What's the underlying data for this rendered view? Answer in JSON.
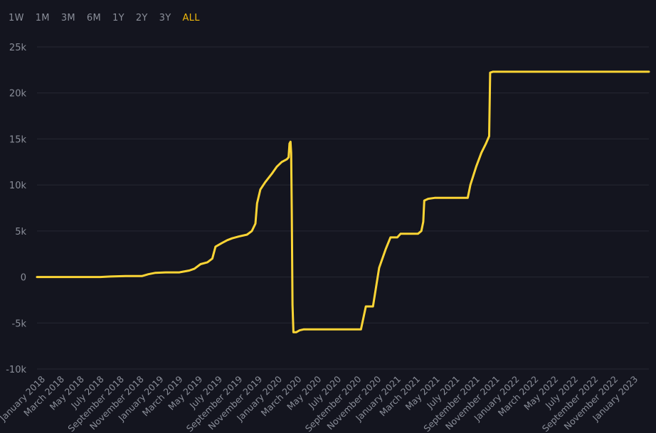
{
  "range_tabs": [
    {
      "label": "1W"
    },
    {
      "label": "1M"
    },
    {
      "label": "3M"
    },
    {
      "label": "6M"
    },
    {
      "label": "1Y"
    },
    {
      "label": "2Y"
    },
    {
      "label": "3Y"
    },
    {
      "label": "ALL"
    }
  ],
  "active_tab": "ALL",
  "colors": {
    "background": "#14151f",
    "line": "#fcd535",
    "accent": "#f0b90b",
    "text": "#8a8e99",
    "grid": "#262833"
  },
  "chart_data": {
    "type": "line",
    "title": "",
    "xlabel": "",
    "ylabel": "",
    "ylim": [
      -10000,
      25000
    ],
    "xlim": [
      "2018-01-01",
      "2023-03-01"
    ],
    "grid": true,
    "yticks": [
      {
        "value": 25000,
        "label": "25k"
      },
      {
        "value": 20000,
        "label": "20k"
      },
      {
        "value": 15000,
        "label": "15k"
      },
      {
        "value": 10000,
        "label": "10k"
      },
      {
        "value": 5000,
        "label": "5k"
      },
      {
        "value": 0,
        "label": "0"
      },
      {
        "value": -5000,
        "label": "-5k"
      },
      {
        "value": -10000,
        "label": "-10k"
      }
    ],
    "xticks": [
      {
        "date": "2018-01-01",
        "label": "January 2018"
      },
      {
        "date": "2018-03-01",
        "label": "March 2018"
      },
      {
        "date": "2018-05-01",
        "label": "May 2018"
      },
      {
        "date": "2018-07-01",
        "label": "July 2018"
      },
      {
        "date": "2018-09-01",
        "label": "September 2018"
      },
      {
        "date": "2018-11-01",
        "label": "November 2018"
      },
      {
        "date": "2019-01-01",
        "label": "January 2019"
      },
      {
        "date": "2019-03-01",
        "label": "March 2019"
      },
      {
        "date": "2019-05-01",
        "label": "May 2019"
      },
      {
        "date": "2019-07-01",
        "label": "July 2019"
      },
      {
        "date": "2019-09-01",
        "label": "September 2019"
      },
      {
        "date": "2019-11-01",
        "label": "November 2019"
      },
      {
        "date": "2020-01-01",
        "label": "January 2020"
      },
      {
        "date": "2020-03-01",
        "label": "March 2020"
      },
      {
        "date": "2020-05-01",
        "label": "May 2020"
      },
      {
        "date": "2020-07-01",
        "label": "July 2020"
      },
      {
        "date": "2020-09-01",
        "label": "September 2020"
      },
      {
        "date": "2020-11-01",
        "label": "November 2020"
      },
      {
        "date": "2021-01-01",
        "label": "January 2021"
      },
      {
        "date": "2021-03-01",
        "label": "March 2021"
      },
      {
        "date": "2021-05-01",
        "label": "May 2021"
      },
      {
        "date": "2021-07-01",
        "label": "July 2021"
      },
      {
        "date": "2021-09-01",
        "label": "September 2021"
      },
      {
        "date": "2021-11-01",
        "label": "November 2021"
      },
      {
        "date": "2022-01-01",
        "label": "January 2022"
      },
      {
        "date": "2022-03-01",
        "label": "March 2022"
      },
      {
        "date": "2022-05-01",
        "label": "May 2022"
      },
      {
        "date": "2022-07-01",
        "label": "July 2022"
      },
      {
        "date": "2022-09-01",
        "label": "September 2022"
      },
      {
        "date": "2022-11-01",
        "label": "November 2022"
      },
      {
        "date": "2023-01-01",
        "label": "January 2023"
      }
    ],
    "series": [
      {
        "points": [
          [
            "2018-01-01",
            0
          ],
          [
            "2018-06-01",
            0
          ],
          [
            "2018-07-15",
            0
          ],
          [
            "2018-08-15",
            50
          ],
          [
            "2018-10-01",
            100
          ],
          [
            "2018-11-20",
            100
          ],
          [
            "2018-12-10",
            300
          ],
          [
            "2019-01-01",
            450
          ],
          [
            "2019-02-01",
            500
          ],
          [
            "2019-03-15",
            500
          ],
          [
            "2019-04-15",
            700
          ],
          [
            "2019-05-01",
            900
          ],
          [
            "2019-05-20",
            1400
          ],
          [
            "2019-06-10",
            1600
          ],
          [
            "2019-06-25",
            2000
          ],
          [
            "2019-07-05",
            3300
          ],
          [
            "2019-07-25",
            3700
          ],
          [
            "2019-08-10",
            4000
          ],
          [
            "2019-08-25",
            4200
          ],
          [
            "2019-09-15",
            4400
          ],
          [
            "2019-10-10",
            4600
          ],
          [
            "2019-10-25",
            5000
          ],
          [
            "2019-11-05",
            5800
          ],
          [
            "2019-11-10",
            8000
          ],
          [
            "2019-11-20",
            9500
          ],
          [
            "2019-12-05",
            10300
          ],
          [
            "2019-12-25",
            11200
          ],
          [
            "2020-01-10",
            12000
          ],
          [
            "2020-01-25",
            12500
          ],
          [
            "2020-02-10",
            12800
          ],
          [
            "2020-02-15",
            13000
          ],
          [
            "2020-02-18",
            14500
          ],
          [
            "2020-02-21",
            14700
          ],
          [
            "2020-02-23",
            13500
          ],
          [
            "2020-02-25",
            7000
          ],
          [
            "2020-02-27",
            -3000
          ],
          [
            "2020-03-01",
            -6000
          ],
          [
            "2020-03-10",
            -6000
          ],
          [
            "2020-03-20",
            -5800
          ],
          [
            "2020-04-01",
            -5700
          ],
          [
            "2020-06-01",
            -5700
          ],
          [
            "2020-08-01",
            -5700
          ],
          [
            "2020-09-25",
            -5700
          ],
          [
            "2020-10-10",
            -3200
          ],
          [
            "2020-10-20",
            -3200
          ],
          [
            "2020-11-01",
            -3200
          ],
          [
            "2020-11-20",
            1000
          ],
          [
            "2020-12-10",
            3000
          ],
          [
            "2020-12-25",
            4300
          ],
          [
            "2021-01-15",
            4300
          ],
          [
            "2021-01-25",
            4700
          ],
          [
            "2021-03-20",
            4700
          ],
          [
            "2021-03-30",
            5000
          ],
          [
            "2021-04-05",
            6000
          ],
          [
            "2021-04-08",
            8300
          ],
          [
            "2021-04-20",
            8500
          ],
          [
            "2021-05-10",
            8600
          ],
          [
            "2021-08-20",
            8600
          ],
          [
            "2021-08-28",
            10000
          ],
          [
            "2021-09-15",
            12000
          ],
          [
            "2021-10-01",
            13500
          ],
          [
            "2021-10-15",
            14500
          ],
          [
            "2021-10-25",
            15300
          ],
          [
            "2021-10-28",
            22200
          ],
          [
            "2021-11-05",
            22300
          ],
          [
            "2023-03-01",
            22300
          ]
        ]
      }
    ]
  }
}
